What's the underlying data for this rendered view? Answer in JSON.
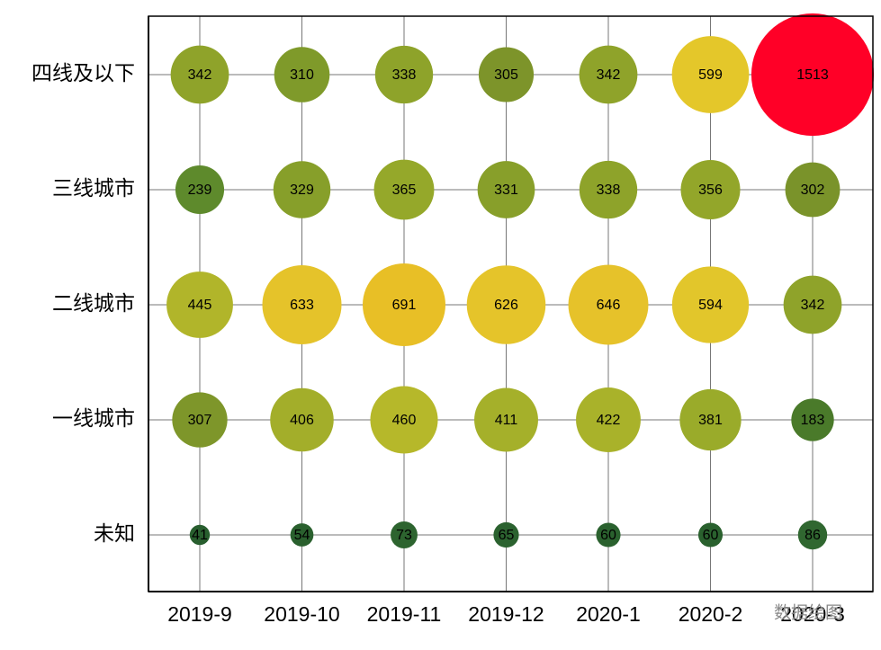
{
  "chart_data": {
    "type": "bubble",
    "categories": [
      "2019-9",
      "2019-10",
      "2019-11",
      "2019-12",
      "2020-1",
      "2020-2",
      "2020-3"
    ],
    "series": [
      {
        "name": "四线及以下",
        "values": [
          342,
          310,
          338,
          305,
          342,
          599,
          1513
        ],
        "colors": [
          "#8fa32a",
          "#7f9a2a",
          "#8ea32a",
          "#7d942a",
          "#8fa32a",
          "#e4c72a",
          "#ff0027"
        ]
      },
      {
        "name": "三线城市",
        "values": [
          239,
          329,
          365,
          331,
          338,
          356,
          302
        ],
        "colors": [
          "#5e8a2c",
          "#879f2a",
          "#95a82a",
          "#889f2a",
          "#8ea32a",
          "#93a62a",
          "#7a932a"
        ]
      },
      {
        "name": "二线城市",
        "values": [
          445,
          633,
          691,
          626,
          646,
          594,
          342
        ],
        "colors": [
          "#b1b52a",
          "#e5c32a",
          "#e8bf26",
          "#e5c42a",
          "#e6c22a",
          "#e2c62b",
          "#8fa32a"
        ]
      },
      {
        "name": "一线城市",
        "values": [
          307,
          406,
          460,
          411,
          422,
          381,
          183
        ],
        "colors": [
          "#7e962a",
          "#a3ae2a",
          "#b6b82a",
          "#a5b02a",
          "#a9b22a",
          "#9aab2a",
          "#4a7a2a"
        ]
      },
      {
        "name": "未知",
        "values": [
          41,
          54,
          73,
          65,
          60,
          60,
          86
        ],
        "colors": [
          "#285e2e",
          "#2a602e",
          "#2d642f",
          "#2b622f",
          "#2a612e",
          "#2a612e",
          "#306730"
        ]
      }
    ],
    "grid": true,
    "watermark": "数据绘图"
  }
}
